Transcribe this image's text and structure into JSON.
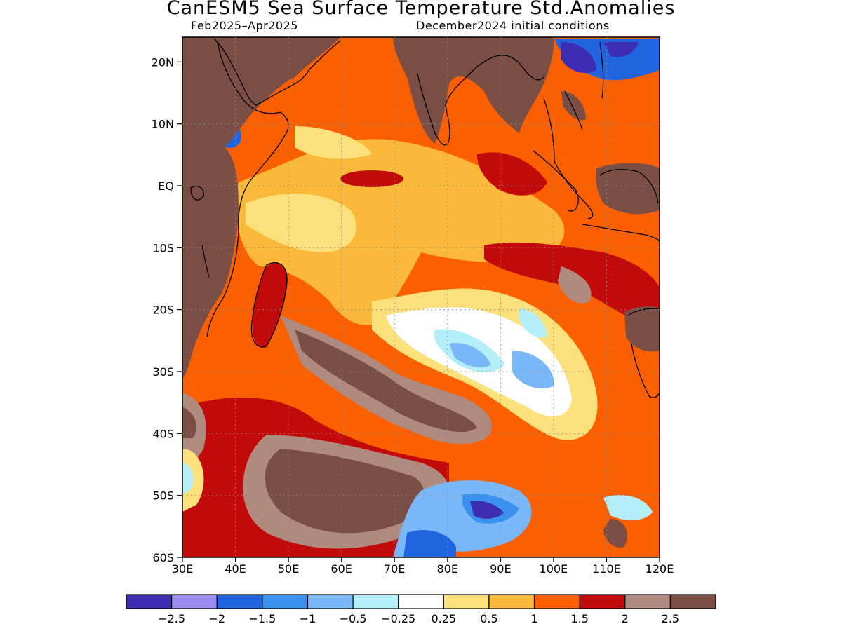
{
  "title": "CanESM5 Sea Surface Temperature Std.Anomalies",
  "subtitle_left": "Feb2025–Apr2025",
  "subtitle_right": "December2024 initial conditions",
  "axes": {
    "lat_labels": [
      "20N",
      "10N",
      "EQ",
      "10S",
      "20S",
      "30S",
      "40S",
      "50S",
      "60S"
    ],
    "lon_labels": [
      "30E",
      "40E",
      "50E",
      "60E",
      "70E",
      "80E",
      "90E",
      "100E",
      "110E",
      "120E"
    ],
    "lat_range": [
      -60,
      24
    ],
    "lon_range": [
      30,
      120
    ]
  },
  "colorbar": {
    "colors": [
      "#3d2db0",
      "#9b8cf0",
      "#2164e0",
      "#3b91ee",
      "#79b7f6",
      "#b4eef8",
      "#ffffff",
      "#fce07c",
      "#fbb93a",
      "#fb6000",
      "#c20a0a",
      "#b08a7e",
      "#7a4e44"
    ],
    "labels": [
      "−2.5",
      "−2",
      "−1.5",
      "−1",
      "−0.5",
      "−0.25",
      "0.25",
      "0.5",
      "1",
      "1.5",
      "2",
      "2.5"
    ]
  },
  "map_fields": {
    "land_color": "#7a4e44",
    "ocean_base": "#fb6000"
  }
}
